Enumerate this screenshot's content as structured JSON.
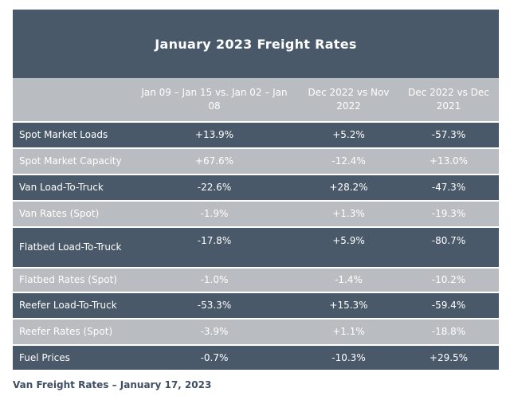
{
  "title": "January 2023 Freight Rates",
  "columns": [
    "",
    "Jan 09 – Jan 15 vs. Jan 02 – Jan 08",
    "Dec 2022 vs Nov 2022",
    "Dec 2022 vs Dec 2021"
  ],
  "rows": [
    {
      "label": "Spot Market Loads",
      "v1": "+13.9%",
      "v2": "+5.2%",
      "v3": "-57.3%"
    },
    {
      "label": "Spot Market Capacity",
      "v1": "+67.6%",
      "v2": "-12.4%",
      "v3": "+13.0%"
    },
    {
      "label": "Van Load-To-Truck",
      "v1": "-22.6%",
      "v2": "+28.2%",
      "v3": "-47.3%"
    },
    {
      "label": "Van Rates (Spot)",
      "v1": "-1.9%",
      "v2": "+1.3%",
      "v3": "-19.3%"
    },
    {
      "label": "Flatbed Load-To-Truck",
      "v1": "-17.8%",
      "v2": "+5.9%",
      "v3": "-80.7%"
    },
    {
      "label": "Flatbed Rates (Spot)",
      "v1": "-1.0%",
      "v2": "-1.4%",
      "v3": "-10.2%"
    },
    {
      "label": "Reefer Load-To-Truck",
      "v1": "-53.3%",
      "v2": "+15.3%",
      "v3": "-59.4%"
    },
    {
      "label": "Reefer Rates (Spot)",
      "v1": "-3.9%",
      "v2": "+1.1%",
      "v3": "-18.8%"
    },
    {
      "label": "Fuel Prices",
      "v1": "-0.7%",
      "v2": "-10.3%",
      "v3": "+29.5%"
    }
  ],
  "caption": "Van Freight Rates – January 17, 2023",
  "colors": {
    "dark_row": "#4a596a",
    "light_row": "#b9bcc1",
    "caption": "#3f4e63"
  }
}
